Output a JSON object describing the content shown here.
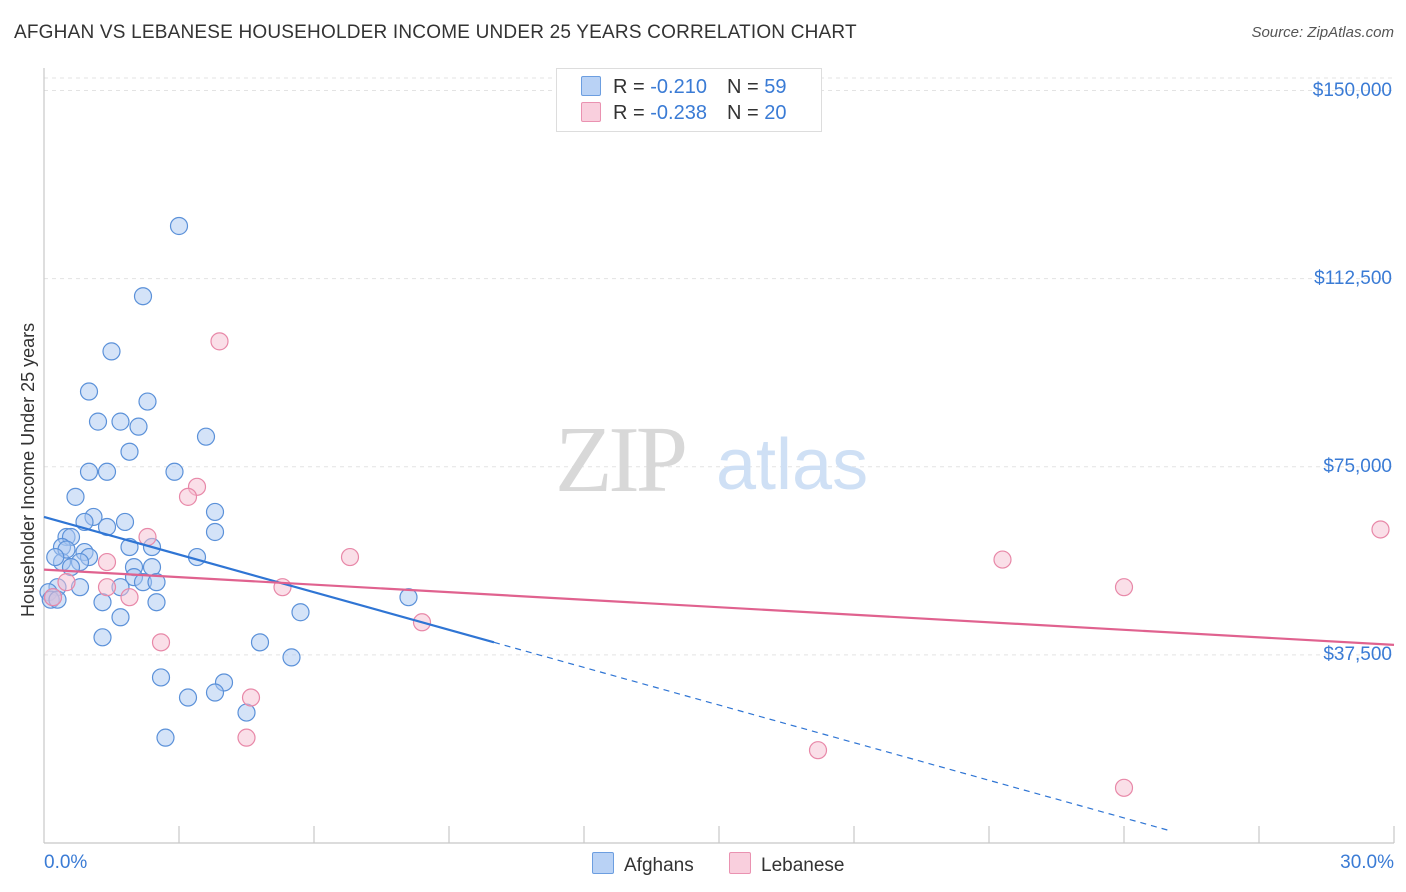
{
  "chart_data": {
    "type": "scatter",
    "title": "AFGHAN VS LEBANESE HOUSEHOLDER INCOME UNDER 25 YEARS CORRELATION CHART",
    "source": "Source: ZipAtlas.com",
    "watermark": {
      "zip": "ZIP",
      "atlas": "atlas"
    },
    "xlabel": "",
    "ylabel": "Householder Income Under 25 years",
    "xlim": [
      0,
      30
    ],
    "ylim": [
      0,
      152500
    ],
    "x_tick_labels": {
      "min": "0.0%",
      "max": "30.0%"
    },
    "y_ticks": [
      {
        "value": 150000,
        "label": "$150,000"
      },
      {
        "value": 112500,
        "label": "$112,500"
      },
      {
        "value": 75000,
        "label": "$75,000"
      },
      {
        "value": 37500,
        "label": "$37,500"
      }
    ],
    "legend": {
      "rows": [
        {
          "r_label": "R = ",
          "r_value": "-0.210",
          "n_label": "N = ",
          "n_value": "59"
        },
        {
          "r_label": "R = ",
          "r_value": "-0.238",
          "n_label": "N = ",
          "n_value": "20"
        }
      ],
      "bottom": [
        "Afghans",
        "Lebanese"
      ]
    },
    "colors": {
      "afghans_fill": "#a9c8f2",
      "afghans_stroke": "#5b91d9",
      "afghans_line": "#2f75d4",
      "lebanese_fill": "#f6bfd2",
      "lebanese_stroke": "#e888a8",
      "lebanese_line": "#e0628f",
      "tick_text": "#3a7bd5"
    },
    "series": [
      {
        "name": "Afghans",
        "trend": {
          "x0": 0,
          "y0": 65000,
          "x1": 10.0,
          "y1": 40000,
          "dash_to_x": 25.0
        },
        "points": [
          [
            3.0,
            123000
          ],
          [
            2.2,
            109000
          ],
          [
            1.5,
            98000
          ],
          [
            1.0,
            90000
          ],
          [
            2.3,
            88000
          ],
          [
            1.2,
            84000
          ],
          [
            1.7,
            84000
          ],
          [
            2.1,
            83000
          ],
          [
            3.6,
            81000
          ],
          [
            1.9,
            78000
          ],
          [
            1.0,
            74000
          ],
          [
            1.4,
            74000
          ],
          [
            2.9,
            74000
          ],
          [
            0.7,
            69000
          ],
          [
            1.1,
            65000
          ],
          [
            3.8,
            66000
          ],
          [
            0.9,
            64000
          ],
          [
            1.8,
            64000
          ],
          [
            1.4,
            63000
          ],
          [
            0.5,
            61000
          ],
          [
            0.6,
            61000
          ],
          [
            3.8,
            62000
          ],
          [
            0.4,
            59000
          ],
          [
            1.9,
            59000
          ],
          [
            2.4,
            59000
          ],
          [
            0.9,
            58000
          ],
          [
            1.0,
            57000
          ],
          [
            3.4,
            57000
          ],
          [
            0.4,
            56000
          ],
          [
            0.8,
            56000
          ],
          [
            0.6,
            55000
          ],
          [
            2.0,
            55000
          ],
          [
            2.4,
            55000
          ],
          [
            2.0,
            53000
          ],
          [
            2.2,
            52000
          ],
          [
            2.5,
            52000
          ],
          [
            1.7,
            51000
          ],
          [
            0.8,
            51000
          ],
          [
            0.3,
            51000
          ],
          [
            0.1,
            50000
          ],
          [
            0.2,
            49000
          ],
          [
            0.15,
            48500
          ],
          [
            8.1,
            49000
          ],
          [
            1.3,
            48000
          ],
          [
            2.5,
            48000
          ],
          [
            5.7,
            46000
          ],
          [
            1.7,
            45000
          ],
          [
            1.3,
            41000
          ],
          [
            4.8,
            40000
          ],
          [
            5.5,
            37000
          ],
          [
            2.6,
            33000
          ],
          [
            4.0,
            32000
          ],
          [
            3.8,
            30000
          ],
          [
            3.2,
            29000
          ],
          [
            4.5,
            26000
          ],
          [
            2.7,
            21000
          ],
          [
            0.3,
            48500
          ],
          [
            0.5,
            58500
          ],
          [
            0.25,
            57000
          ]
        ]
      },
      {
        "name": "Lebanese",
        "trend": {
          "x0": 0,
          "y0": 54500,
          "x1": 30,
          "y1": 39500
        },
        "points": [
          [
            3.9,
            100000
          ],
          [
            3.4,
            71000
          ],
          [
            3.2,
            69000
          ],
          [
            2.3,
            61000
          ],
          [
            6.8,
            57000
          ],
          [
            21.3,
            56500
          ],
          [
            29.7,
            62500
          ],
          [
            24.0,
            51000
          ],
          [
            5.3,
            51000
          ],
          [
            0.5,
            52000
          ],
          [
            1.4,
            56000
          ],
          [
            1.4,
            51000
          ],
          [
            1.9,
            49000
          ],
          [
            8.4,
            44000
          ],
          [
            2.6,
            40000
          ],
          [
            4.6,
            29000
          ],
          [
            4.5,
            21000
          ],
          [
            17.2,
            18500
          ],
          [
            24.0,
            11000
          ],
          [
            0.2,
            49000
          ]
        ]
      }
    ]
  }
}
